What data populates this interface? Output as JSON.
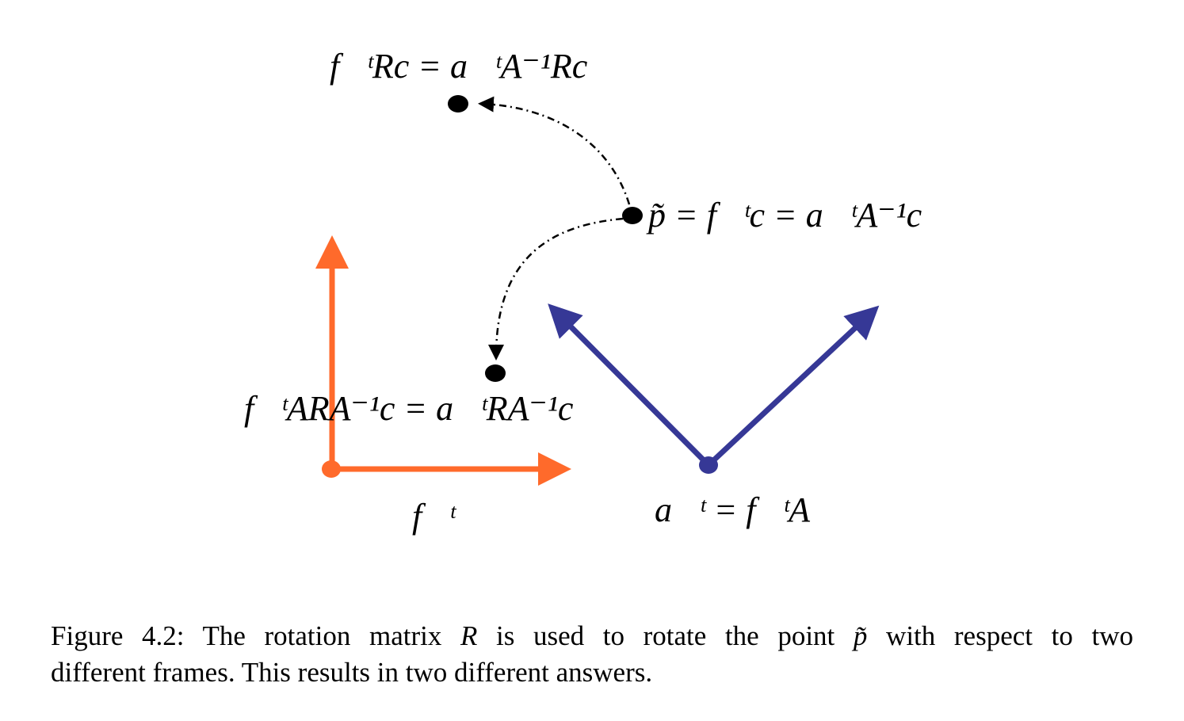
{
  "colors": {
    "frame_f": "#ff6a2b",
    "frame_a": "#363896",
    "points": "#000000",
    "text": "#000000"
  },
  "labels": {
    "top_point": "f⃗ᵗRc = a⃗ᵗA⁻¹Rc",
    "p_point": "p̃ = f⃗ᵗc = a⃗ᵗA⁻¹c",
    "rotated_point": "f⃗ᵗARA⁻¹c = a⃗ᵗRA⁻¹c",
    "frame_f": "f⃗ᵗ",
    "frame_a": "a⃗ᵗ = f⃗ᵗA"
  },
  "caption": {
    "line1_prefix": "Figure 4.2:  The rotation matrix ",
    "R": "R",
    "line1_mid": " is used to rotate the point ",
    "p": "p̃",
    "line1_suffix": " with respect to two",
    "line2": "different frames. This results in two different answers."
  }
}
